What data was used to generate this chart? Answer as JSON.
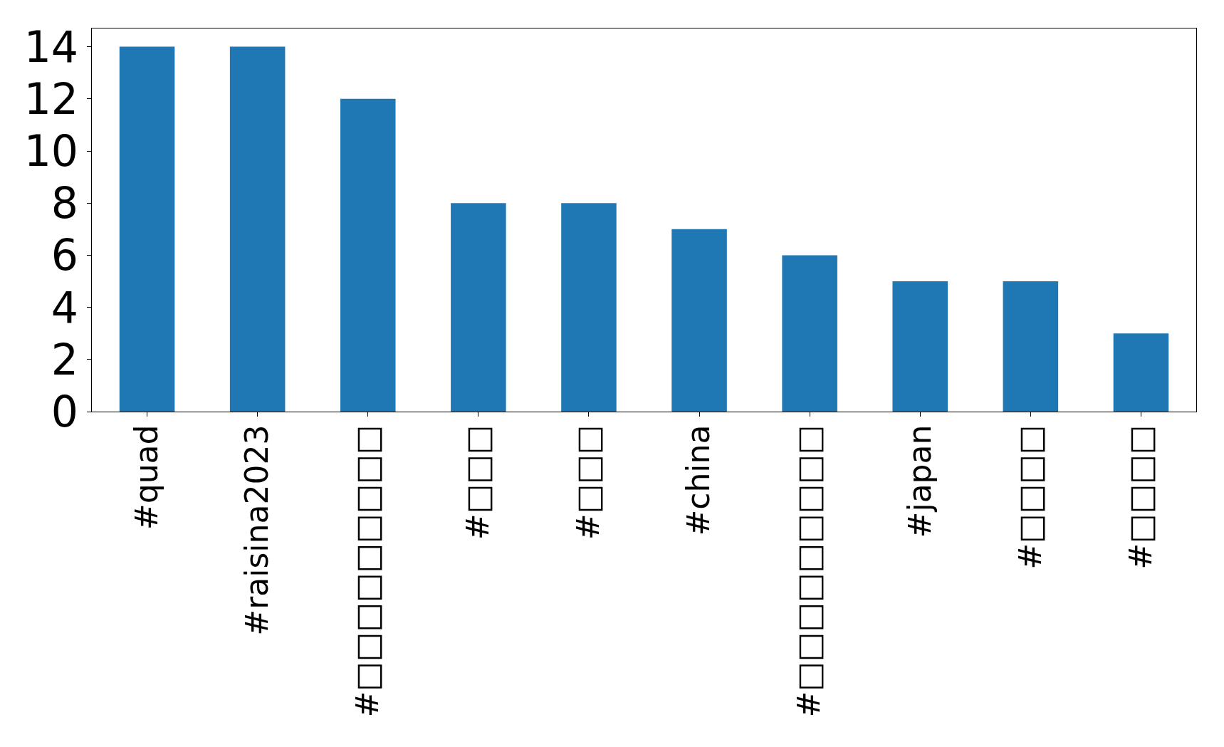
{
  "chart_data": {
    "type": "bar",
    "categories": [
      "#quad",
      "#raisina2023",
      "#□□□□□□□□□",
      "#□□□",
      "#□□□",
      "#china",
      "#□□□□□□□□□",
      "#japan",
      "#□□□□",
      "#□□□□"
    ],
    "values": [
      14,
      14,
      12,
      8,
      8,
      7,
      6,
      5,
      5,
      3
    ],
    "color": "#1f77b4",
    "ylim": [
      0,
      14.7
    ],
    "yticks": [
      0,
      2,
      4,
      6,
      8,
      10,
      12,
      14
    ]
  }
}
